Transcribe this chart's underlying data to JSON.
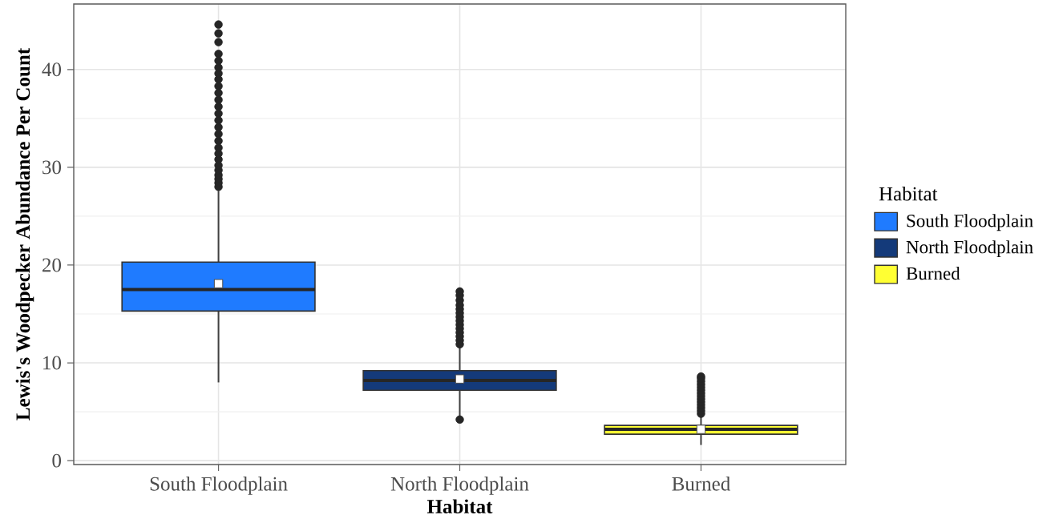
{
  "chart_data": {
    "type": "box",
    "xlabel": "Habitat",
    "ylabel": "Lewis's Woodpecker Abundance Per Count",
    "legend_title": "Habitat",
    "categories": [
      "South Floodplain",
      "North Floodplain",
      "Burned"
    ],
    "series": [
      {
        "name": "South Floodplain",
        "color": "#1f7bff",
        "boxes": [
          {
            "low": 8.0,
            "q1": 15.3,
            "median": 17.5,
            "q3": 20.3,
            "high": 27.6,
            "mean": 18.1,
            "outliers": [
              28.0,
              28.4,
              28.8,
              29.2,
              29.7,
              30.2,
              30.8,
              31.4,
              32.0,
              32.7,
              33.4,
              34.1,
              34.8,
              35.5,
              36.2,
              36.9,
              37.6,
              38.3,
              39.0,
              39.6,
              40.2,
              40.9,
              41.6,
              42.8,
              43.7,
              44.6
            ]
          },
          null,
          null
        ]
      },
      {
        "name": "North Floodplain",
        "color": "#143a7a",
        "boxes": [
          null,
          {
            "low": 4.5,
            "q1": 7.2,
            "median": 8.2,
            "q3": 9.2,
            "high": 11.6,
            "mean": 8.35,
            "outliers": [
              4.2,
              11.9,
              12.3,
              12.7,
              13.1,
              13.5,
              13.9,
              14.3,
              14.7,
              15.1,
              15.5,
              15.9,
              16.4,
              16.9,
              17.3
            ]
          },
          null
        ]
      },
      {
        "name": "Burned",
        "color": "#ffff33",
        "boxes": [
          null,
          null,
          {
            "low": 1.6,
            "q1": 2.7,
            "median": 3.2,
            "q3": 3.6,
            "high": 4.6,
            "mean": 3.2,
            "outliers": [
              4.8,
              5.1,
              5.4,
              5.7,
              6.0,
              6.3,
              6.6,
              6.9,
              7.2,
              7.5,
              7.8,
              8.1,
              8.4,
              8.6
            ]
          }
        ]
      }
    ],
    "ylim": [
      -0.4,
      46.7
    ],
    "yticks": [
      0,
      10,
      20,
      30,
      40
    ],
    "grid": true,
    "legend": "right"
  }
}
